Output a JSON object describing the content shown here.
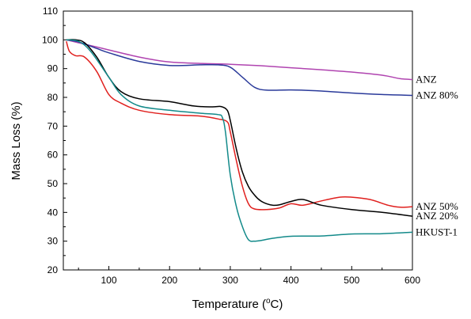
{
  "chart_data": {
    "type": "line",
    "xlabel_prefix": "Temperature (",
    "xlabel_sup": "o",
    "xlabel_suffix": "C)",
    "ylabel": "Mass Loss (%)",
    "xlim": [
      25,
      600
    ],
    "ylim": [
      20,
      110
    ],
    "xticks": [
      100,
      200,
      300,
      400,
      500,
      600
    ],
    "yticks": [
      20,
      30,
      40,
      50,
      60,
      70,
      80,
      90,
      100,
      110
    ],
    "grid": false,
    "series": [
      {
        "name": "ANZ",
        "color": "#b044b0",
        "x": [
          30,
          50,
          80,
          100,
          150,
          200,
          250,
          300,
          350,
          400,
          450,
          500,
          550,
          580,
          600
        ],
        "y": [
          100,
          99,
          97.5,
          96.5,
          94,
          92.3,
          91.8,
          91.5,
          91,
          90.3,
          89.6,
          88.8,
          87.7,
          86.5,
          86.2
        ]
      },
      {
        "name": "ANZ 80%",
        "color": "#2a3a9a",
        "x": [
          30,
          50,
          80,
          100,
          150,
          200,
          250,
          280,
          300,
          320,
          340,
          360,
          400,
          450,
          500,
          550,
          600
        ],
        "y": [
          100,
          99.3,
          97,
          95.5,
          92.5,
          91.1,
          91.3,
          91.3,
          90.5,
          87,
          83.5,
          82.5,
          82.6,
          82.2,
          81.5,
          81,
          80.7
        ]
      },
      {
        "name": "ANZ 50%",
        "color": "#e0201e",
        "x": [
          30,
          35,
          45,
          60,
          80,
          100,
          120,
          150,
          200,
          250,
          280,
          295,
          300,
          310,
          320,
          330,
          340,
          360,
          380,
          400,
          420,
          450,
          480,
          500,
          530,
          560,
          580,
          600
        ],
        "y": [
          99.5,
          96,
          94.5,
          94,
          89,
          81,
          78,
          75.5,
          74,
          73.5,
          72.5,
          71.5,
          68,
          58,
          49,
          43,
          41.2,
          41,
          41.5,
          43,
          42.5,
          44,
          45.3,
          45.3,
          44.5,
          42.5,
          41.8,
          42
        ]
      },
      {
        "name": "ANZ 20%",
        "color": "#000000",
        "x": [
          30,
          45,
          60,
          80,
          100,
          120,
          150,
          200,
          240,
          270,
          285,
          295,
          300,
          310,
          320,
          330,
          340,
          350,
          360,
          370,
          380,
          400,
          420,
          450,
          500,
          550,
          600
        ],
        "y": [
          100,
          100,
          99,
          94,
          87,
          82,
          79.5,
          78.5,
          77,
          76.7,
          76.8,
          75.5,
          72,
          62,
          54,
          49,
          46,
          44,
          43,
          42.5,
          42.6,
          43.8,
          44.5,
          42.5,
          41,
          40,
          38.7
        ]
      },
      {
        "name": "HKUST-1",
        "color": "#138a8a",
        "x": [
          30,
          50,
          70,
          100,
          120,
          150,
          200,
          250,
          280,
          287,
          292,
          300,
          310,
          320,
          330,
          340,
          350,
          370,
          400,
          450,
          500,
          550,
          600
        ],
        "y": [
          100,
          99.5,
          96,
          87,
          81,
          77,
          75.5,
          74.5,
          74,
          73,
          68,
          53,
          42,
          35,
          30.5,
          30,
          30.2,
          31,
          31.7,
          31.8,
          32.5,
          32.6,
          33.1
        ]
      }
    ]
  }
}
